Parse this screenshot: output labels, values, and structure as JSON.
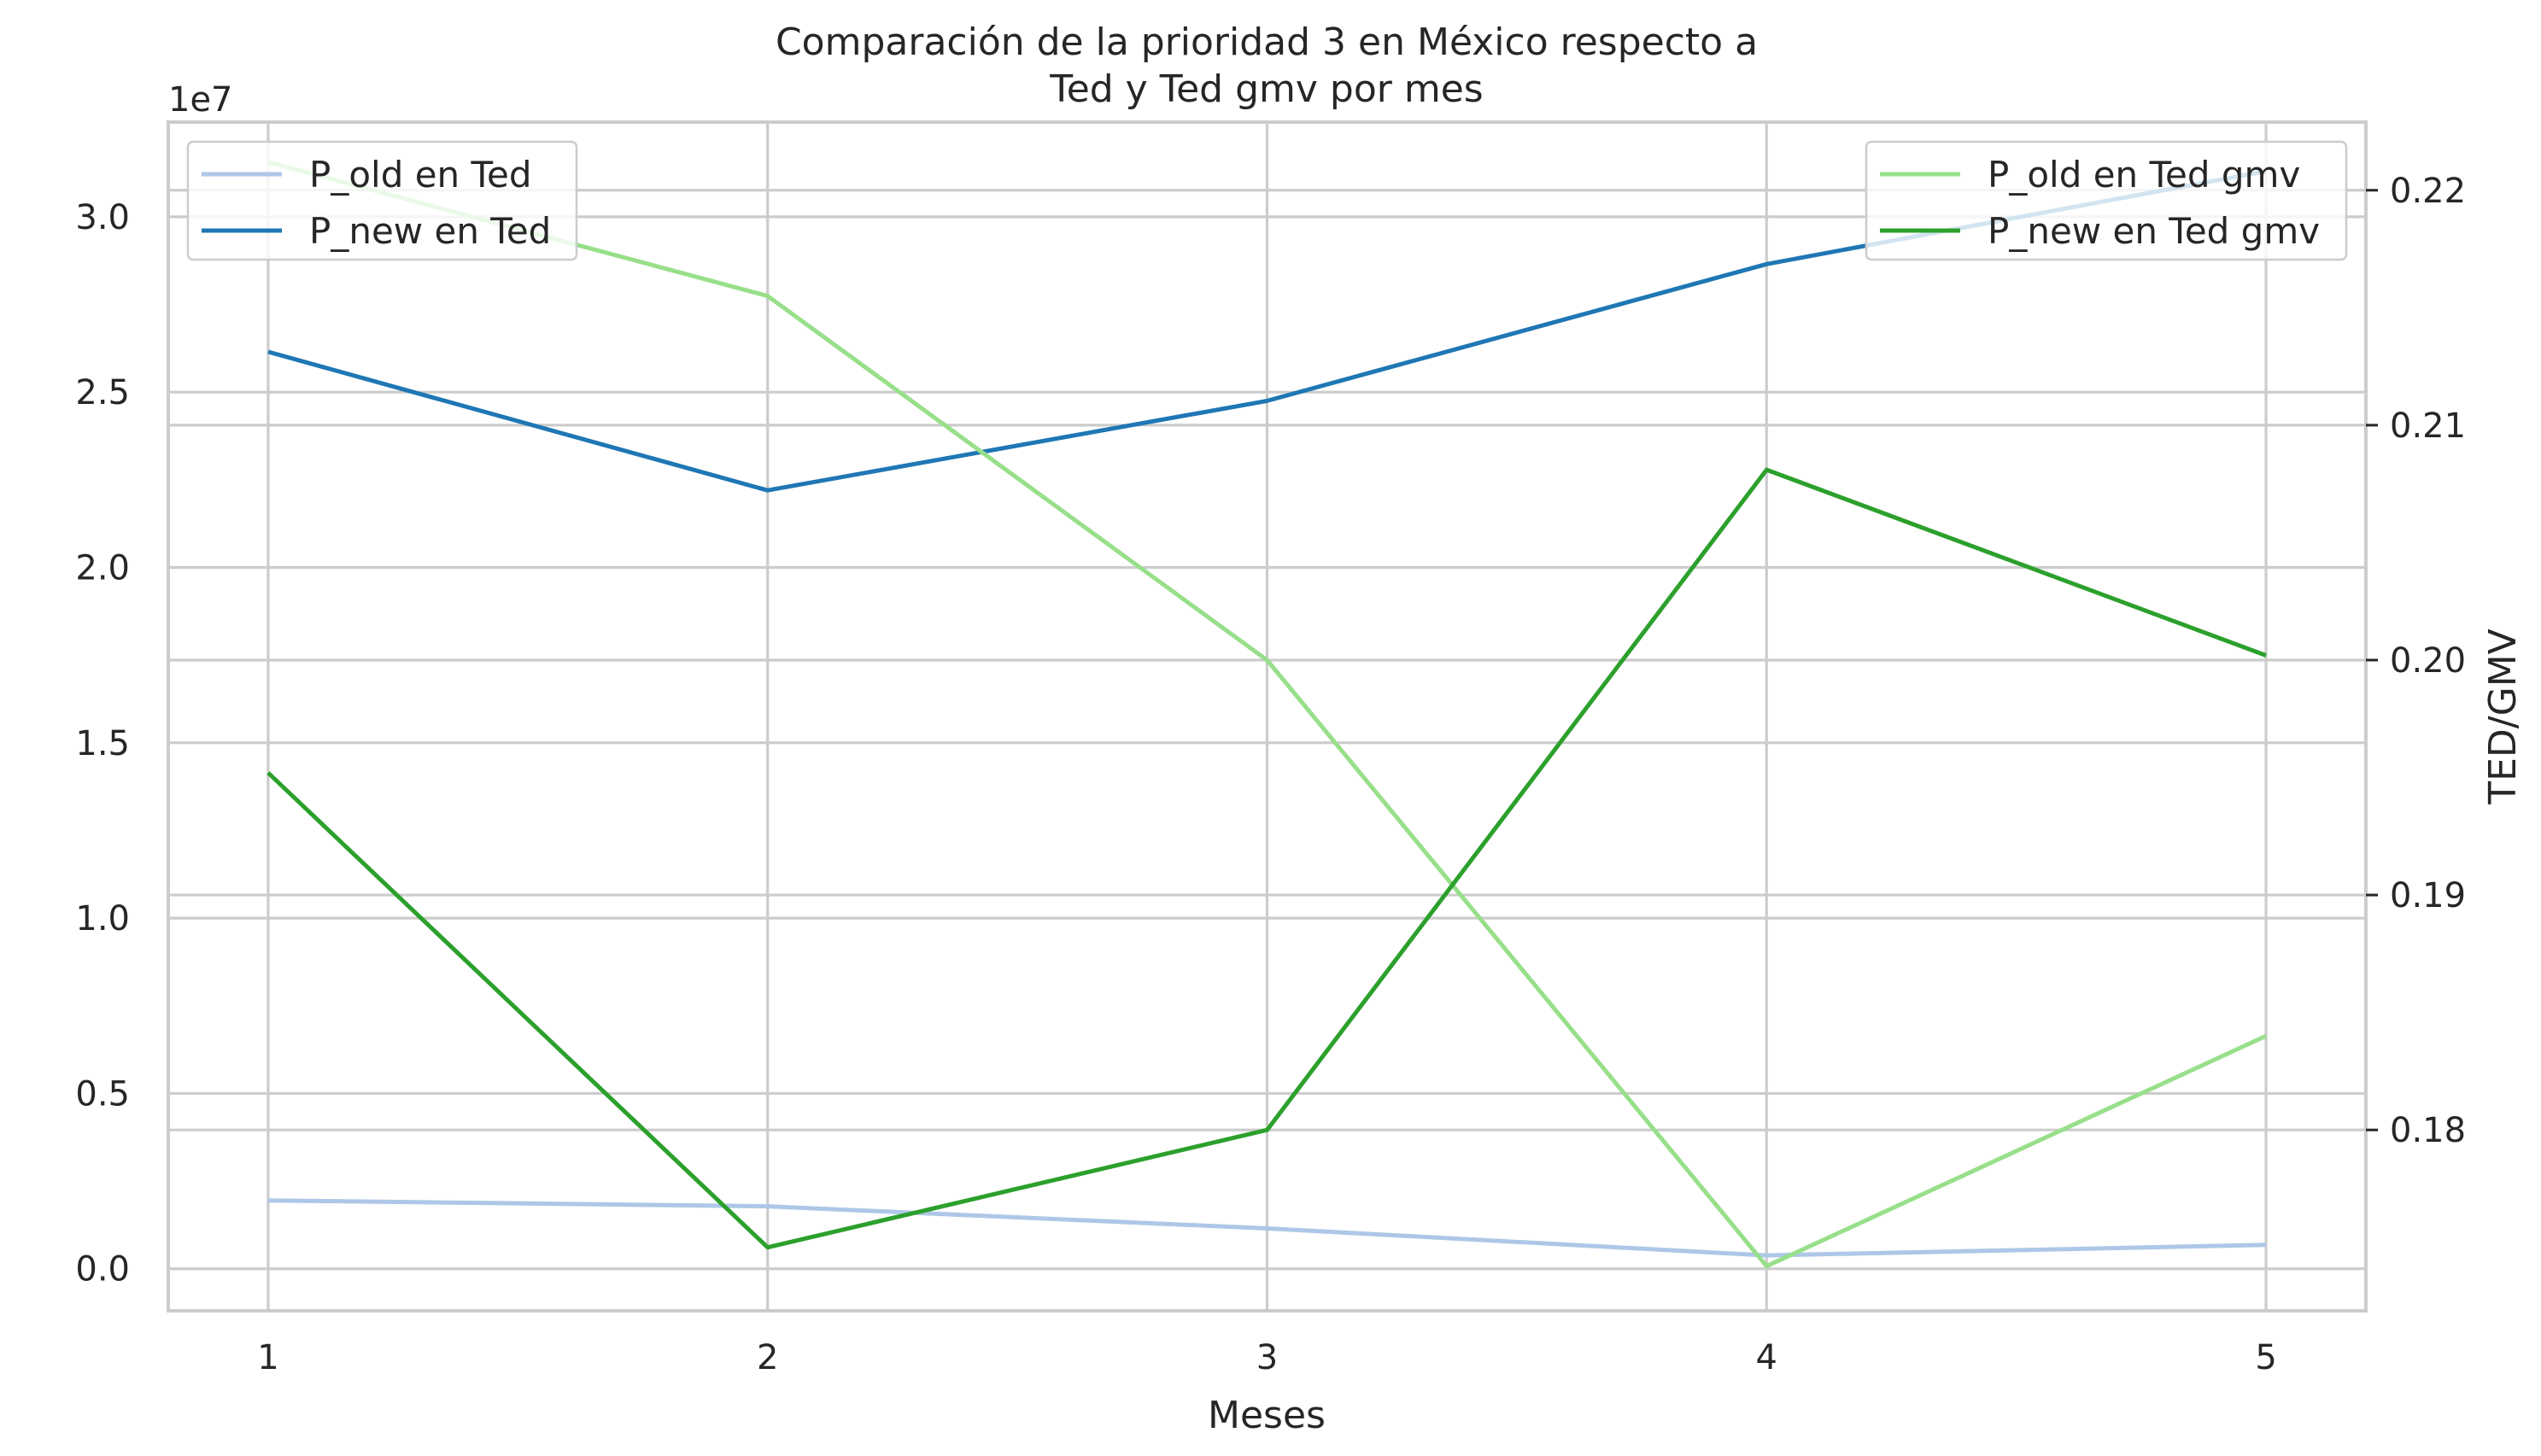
{
  "chart_data": {
    "type": "line",
    "title": "Comparación de la prioridad 3 en México respecto a\nTed y Ted gmv por mes",
    "xlabel": "Meses",
    "x": [
      1,
      2,
      3,
      4,
      5
    ],
    "x_tick_labels": [
      "1",
      "2",
      "3",
      "4",
      "5"
    ],
    "grid": true,
    "left_axis": {
      "ylabel": "",
      "offset_text": "1e7",
      "ylim": [
        -0.12,
        3.27
      ],
      "ticks": [
        0.0,
        0.5,
        1.0,
        1.5,
        2.0,
        2.5,
        3.0
      ],
      "tick_labels": [
        "0.0",
        "0.5",
        "1.0",
        "1.5",
        "2.0",
        "2.5",
        "3.0"
      ],
      "legend_position": "upper-left",
      "series": [
        {
          "name": "P_old en Ted",
          "color": "#aec7e8",
          "values": [
            0.195,
            0.178,
            0.115,
            0.038,
            0.068
          ]
        },
        {
          "name": "P_new en Ted",
          "color": "#1f77b4",
          "values": [
            2.615,
            2.22,
            2.475,
            2.865,
            3.13
          ]
        }
      ]
    },
    "right_axis": {
      "ylabel": "TED/GMV",
      "ylim": [
        0.1723,
        0.2229
      ],
      "ticks": [
        0.18,
        0.19,
        0.2,
        0.21,
        0.22
      ],
      "tick_labels": [
        "0.18",
        "0.19",
        "0.20",
        "0.21",
        "0.22"
      ],
      "legend_position": "upper-right",
      "series": [
        {
          "name": "P_old en Ted gmv",
          "color": "#98df8a",
          "values": [
            0.2212,
            0.2155,
            0.2,
            0.1742,
            0.184
          ]
        },
        {
          "name": "P_new en Ted gmv",
          "color": "#2ca02c",
          "values": [
            0.1952,
            0.175,
            0.18,
            0.2081,
            0.2002
          ]
        }
      ]
    }
  }
}
